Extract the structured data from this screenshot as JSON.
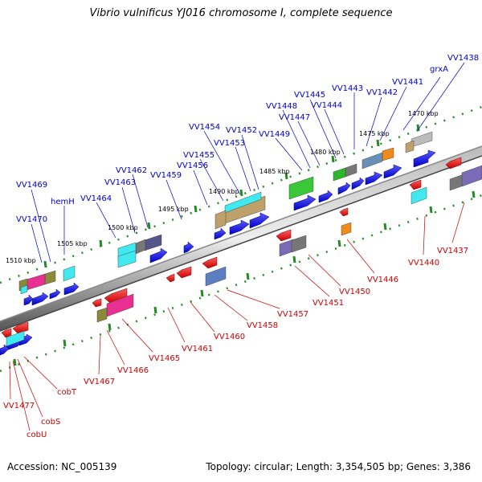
{
  "title": "Vibrio vulnificus YJ016 chromosome I, complete sequence",
  "footer": {
    "accession": "Accession: NC_005139",
    "topology": "Topology: circular; Length: 3,354,505 bp; Genes: 3,386"
  },
  "kbp_labels": [
    "1470 kbp",
    "1475 kbp",
    "1480 kbp",
    "1485 kbp",
    "1490 kbp",
    "1495 kbp",
    "1500 kbp",
    "1505 kbp",
    "1510 kbp"
  ],
  "top_gene_labels": [
    "VV1438",
    "grxA",
    "VV1441",
    "VV1442",
    "VV1443",
    "VV1444",
    "VV1445",
    "VV1447",
    "VV1448",
    "VV1449",
    "VV1452",
    "VV1453",
    "VV1454",
    "VV1455",
    "VV1456",
    "VV1459",
    "VV1462",
    "VV1463",
    "VV1464",
    "hemH",
    "VV1469",
    "VV1470"
  ],
  "bottom_gene_labels": [
    "VV1437",
    "VV1440",
    "VV1446",
    "VV1450",
    "VV1451",
    "VV1457",
    "VV1458",
    "VV1460",
    "VV1461",
    "VV1465",
    "VV1466",
    "VV1467",
    "VV1477",
    "cobT",
    "cobS",
    "cobU"
  ],
  "colors": {
    "forward_gene": "#1a1ae6",
    "reverse_gene": "#e01a1a",
    "top_label": "#0000cc",
    "bottom_label": "#cc0000",
    "tick": "#228b22",
    "backbone": "#777777"
  }
}
